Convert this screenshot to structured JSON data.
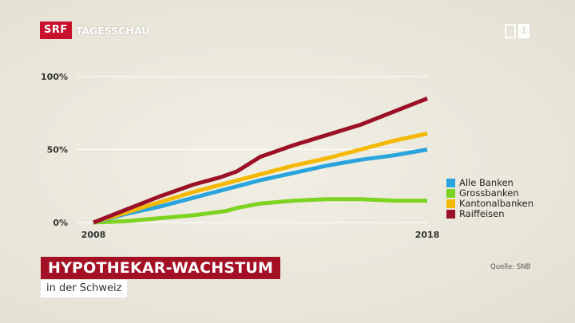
{
  "broadcaster": {
    "logo": "SRF",
    "program": "TAGESSCHAU",
    "channel": "1",
    "brand_color": "#c8102e"
  },
  "title": "HYPOTHEKAR-WACHSTUM",
  "subtitle": "in der Schweiz",
  "source": "Quelle: SNB",
  "chart_data": {
    "type": "line",
    "x_labels": [
      "2008",
      "2018"
    ],
    "y_ticks": [
      "0%",
      "50%",
      "100%"
    ],
    "ylim": [
      0,
      100
    ],
    "grid": true,
    "legend_position": "right",
    "series": [
      {
        "name": "Alle Banken",
        "color": "#29a4dc",
        "x": [
          2008,
          2009,
          2010,
          2011,
          2012,
          2013,
          2014,
          2015,
          2016,
          2017,
          2018
        ],
        "values": [
          0,
          6,
          11,
          17,
          23,
          29,
          34,
          39,
          43,
          46,
          50
        ]
      },
      {
        "name": "Grossbanken",
        "color": "#7ed321",
        "x": [
          2008,
          2009,
          2010,
          2011,
          2012,
          2012.3,
          2013,
          2014,
          2015,
          2016,
          2017,
          2018
        ],
        "values": [
          0,
          1,
          3,
          5,
          8,
          10,
          13,
          15,
          16,
          16,
          15,
          15
        ]
      },
      {
        "name": "Kantonalbanken",
        "color": "#f5b800",
        "x": [
          2008,
          2009,
          2010,
          2011,
          2012,
          2013,
          2014,
          2015,
          2016,
          2017,
          2018
        ],
        "values": [
          0,
          7,
          14,
          21,
          27,
          33,
          39,
          44,
          50,
          56,
          61
        ]
      },
      {
        "name": "Raiffeisen",
        "color": "#9b1026",
        "x": [
          2008,
          2009,
          2010,
          2011,
          2011.8,
          2012.3,
          2013,
          2014,
          2015,
          2016,
          2017,
          2018
        ],
        "values": [
          0,
          9,
          18,
          26,
          31,
          35,
          45,
          53,
          60,
          67,
          76,
          85
        ]
      }
    ]
  }
}
